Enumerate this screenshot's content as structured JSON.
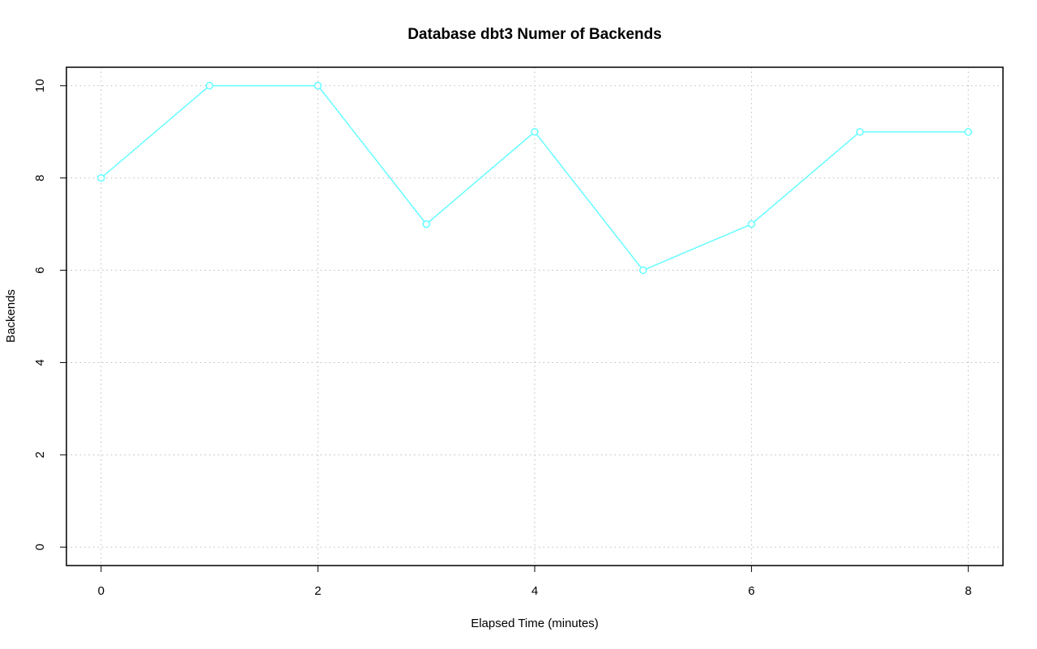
{
  "chart_data": {
    "type": "line",
    "title": "Database dbt3 Numer of Backends",
    "x_label": "Elapsed Time (minutes)",
    "y_label": "Backends",
    "x": [
      0,
      1,
      2,
      3,
      4,
      5,
      6,
      7,
      8
    ],
    "series": [
      {
        "color": "#66ffff",
        "values": [
          8,
          10,
          10,
          7,
          9,
          6,
          7,
          9,
          9
        ]
      }
    ],
    "xlim": [
      -0.32,
      8.32
    ],
    "xticks": [
      0,
      2,
      4,
      6,
      8
    ],
    "ylim": [
      -0.4,
      10.4
    ],
    "yticks": [
      0,
      2,
      4,
      6,
      8,
      10
    ],
    "grid": true
  }
}
